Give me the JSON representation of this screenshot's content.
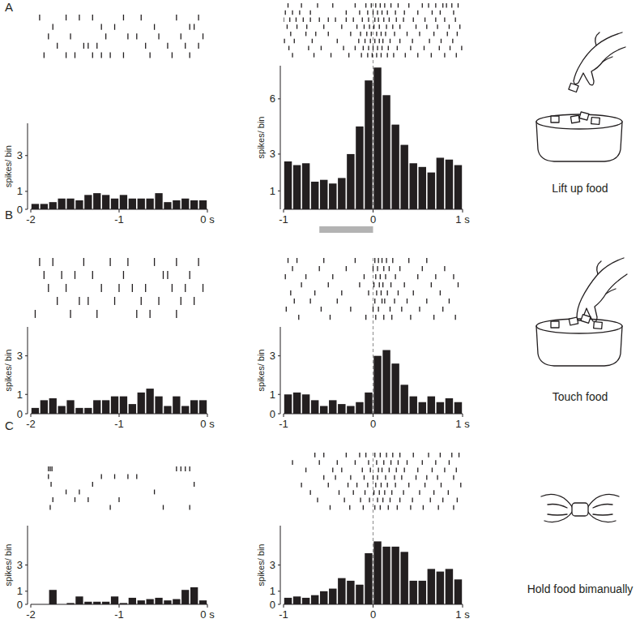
{
  "chart_data": [
    {
      "type": "histogram",
      "y_label": "spikes/ bin",
      "color": "#231f20",
      "bins": [
        -2.0,
        -1.9,
        -1.8,
        -1.7,
        -1.6,
        -1.5,
        -1.4,
        -1.3,
        -1.2,
        -1.1,
        -1.0,
        -0.9,
        -0.8,
        -0.7,
        -0.6,
        -0.5,
        -0.4,
        -0.3,
        -0.2,
        -0.1,
        0.0
      ],
      "values": [
        0.3,
        0.3,
        0.4,
        0.6,
        0.6,
        0.5,
        0.8,
        0.9,
        0.8,
        0.6,
        0.8,
        0.6,
        0.6,
        0.6,
        0.9,
        0.4,
        0.5,
        0.6,
        0.5,
        0.5
      ],
      "xlim": [
        -2,
        0
      ],
      "xticks": [
        -2,
        -1,
        {
          "value": 0,
          "label": "0 s"
        }
      ],
      "ylim": [
        0,
        4.8
      ],
      "yticks": [
        0,
        1,
        3
      ],
      "raster": [
        [
          -1.9,
          -1.6,
          -1.45,
          -1.3,
          -0.95,
          -0.75,
          -0.35,
          -0.1
        ],
        [
          -1.75,
          -1.2,
          -1.05,
          -0.6,
          -0.2,
          -0.15
        ],
        [
          -1.8,
          -1.55,
          -1.15,
          -0.9,
          -0.8,
          -0.55,
          -0.3,
          -0.05
        ],
        [
          -1.7,
          -1.4,
          -1.35,
          -1.25,
          -0.7,
          -0.45,
          -0.25,
          -0.1
        ],
        [
          -1.85,
          -1.6,
          -1.5,
          -1.3,
          -1.2,
          -1.1,
          -0.95,
          -0.65,
          -0.4,
          -0.2
        ]
      ]
    },
    {
      "type": "histogram",
      "y_label": "spikes/ bin",
      "color": "#231f20",
      "bins": [
        -1.0,
        -0.9,
        -0.8,
        -0.7,
        -0.6,
        -0.5,
        -0.4,
        -0.3,
        -0.2,
        -0.1,
        0.0,
        0.1,
        0.2,
        0.3,
        0.4,
        0.5,
        0.6,
        0.7,
        0.8,
        0.9,
        1.0
      ],
      "values": [
        2.6,
        2.4,
        2.5,
        1.5,
        1.6,
        1.4,
        1.7,
        3.0,
        4.5,
        7.0,
        7.7,
        6.2,
        4.6,
        3.5,
        2.5,
        2.3,
        2.0,
        2.8,
        2.7,
        2.4
      ],
      "xlim": [
        -1,
        1
      ],
      "xticks": [
        -1,
        0,
        {
          "value": 1,
          "label": "1 s"
        }
      ],
      "ylim": [
        0,
        7.8
      ],
      "yticks": [
        1,
        3,
        6
      ],
      "event_time": 0,
      "epoch": [
        -0.6,
        0
      ],
      "raster": [
        [
          -0.95,
          -0.8,
          -0.62,
          -0.45,
          -0.2,
          -0.08,
          -0.02,
          0.03,
          0.08,
          0.13,
          0.2,
          0.28,
          0.4,
          0.55,
          0.62,
          0.7,
          0.78,
          0.82,
          0.88,
          0.95
        ],
        [
          -0.98,
          -0.9,
          -0.82,
          -0.7,
          -0.3,
          -0.15,
          -0.06,
          0.0,
          0.05,
          0.1,
          0.16,
          0.25,
          0.35,
          0.5,
          0.66,
          0.75,
          0.9
        ],
        [
          -1.0,
          -0.93,
          -0.86,
          -0.78,
          -0.7,
          -0.6,
          -0.5,
          -0.42,
          -0.3,
          -0.22,
          -0.12,
          -0.05,
          0.02,
          0.06,
          0.12,
          0.18,
          0.26,
          0.34,
          0.45,
          0.58,
          0.7,
          0.8,
          0.92
        ],
        [
          -0.96,
          -0.85,
          -0.74,
          -0.55,
          -0.35,
          -0.18,
          -0.1,
          -0.04,
          0.01,
          0.07,
          0.15,
          0.22,
          0.3,
          0.48,
          0.6,
          0.72,
          0.85,
          0.97
        ],
        [
          -0.92,
          -0.75,
          -0.64,
          -0.5,
          -0.25,
          -0.14,
          -0.07,
          -0.02,
          0.04,
          0.09,
          0.14,
          0.24,
          0.38,
          0.52,
          0.68,
          0.83,
          0.94
        ],
        [
          -0.99,
          -0.88,
          -0.68,
          -0.4,
          -0.16,
          -0.09,
          -0.03,
          0.02,
          0.07,
          0.11,
          0.19,
          0.3,
          0.44,
          0.63,
          0.76,
          0.89
        ],
        [
          -0.94,
          -0.72,
          -0.58,
          -0.33,
          -0.2,
          -0.11,
          -0.05,
          0.0,
          0.05,
          0.1,
          0.17,
          0.27,
          0.42,
          0.57,
          0.74,
          0.86,
          0.99
        ],
        [
          -0.9,
          -0.66,
          -0.47,
          -0.27,
          -0.13,
          -0.06,
          -0.01,
          0.04,
          0.09,
          0.16,
          0.23,
          0.36,
          0.5,
          0.65,
          0.8,
          0.93
        ]
      ]
    },
    {
      "type": "histogram",
      "y_label": "spikes/ bin",
      "color": "#231f20",
      "bins": [
        -2.0,
        -1.9,
        -1.8,
        -1.7,
        -1.6,
        -1.5,
        -1.4,
        -1.3,
        -1.2,
        -1.1,
        -1.0,
        -0.9,
        -0.8,
        -0.7,
        -0.6,
        -0.5,
        -0.4,
        -0.3,
        -0.2,
        -0.1,
        0.0
      ],
      "values": [
        0.3,
        0.7,
        0.8,
        0.4,
        0.7,
        0.3,
        0.3,
        0.7,
        0.7,
        0.9,
        0.9,
        0.5,
        1.1,
        1.3,
        0.9,
        0.4,
        0.9,
        0.4,
        0.7,
        0.7
      ],
      "xlim": [
        -2,
        0
      ],
      "xticks": [
        -2,
        -1,
        {
          "value": 0,
          "label": "0 s"
        }
      ],
      "ylim": [
        0,
        4.5
      ],
      "yticks": [
        0,
        1,
        3
      ],
      "raster": [
        [
          -1.9,
          -1.75,
          -1.4,
          -1.1,
          -0.9,
          -0.6,
          -0.35,
          -0.1
        ],
        [
          -1.85,
          -1.65,
          -1.5,
          -1.3,
          -0.95,
          -0.5,
          -0.45,
          -0.2
        ],
        [
          -1.8,
          -1.6,
          -1.2,
          -1.0,
          -0.85,
          -0.7,
          -0.4,
          -0.25,
          -0.05
        ],
        [
          -1.7,
          -1.45,
          -1.35,
          -1.05,
          -0.75,
          -0.55,
          -0.3,
          -0.15
        ],
        [
          -1.95,
          -1.55,
          -1.25,
          -0.8,
          -0.65,
          -0.35
        ]
      ]
    },
    {
      "type": "histogram",
      "y_label": "spikes/ bin",
      "color": "#231f20",
      "bins": [
        -1.0,
        -0.9,
        -0.8,
        -0.7,
        -0.6,
        -0.5,
        -0.4,
        -0.3,
        -0.2,
        -0.1,
        0.0,
        0.1,
        0.2,
        0.3,
        0.4,
        0.5,
        0.6,
        0.7,
        0.8,
        0.9,
        1.0
      ],
      "values": [
        1.0,
        1.1,
        1.0,
        0.7,
        0.4,
        0.7,
        0.5,
        0.4,
        0.6,
        1.1,
        3.0,
        3.3,
        2.6,
        1.5,
        0.9,
        0.6,
        0.9,
        0.6,
        0.8,
        0.6
      ],
      "xlim": [
        -1,
        1
      ],
      "xticks": [
        -1,
        0,
        {
          "value": 1,
          "label": "1 s"
        }
      ],
      "ylim": [
        0,
        4.5
      ],
      "yticks": [
        0,
        1,
        3
      ],
      "event_time": 0,
      "raster": [
        [
          -0.95,
          -0.85,
          -0.55,
          -0.2,
          0.02,
          0.06,
          0.1,
          0.15,
          0.22,
          0.4,
          0.6
        ],
        [
          -0.9,
          -0.6,
          -0.3,
          0.0,
          0.05,
          0.12,
          0.18,
          0.3,
          0.55,
          0.8
        ],
        [
          -0.98,
          -0.75,
          -0.45,
          -0.1,
          0.03,
          0.08,
          0.14,
          0.25,
          0.5,
          0.7,
          0.9
        ],
        [
          -0.8,
          -0.5,
          -0.15,
          0.01,
          0.07,
          0.11,
          0.2,
          0.35,
          0.65,
          0.95
        ],
        [
          -0.92,
          -0.65,
          -0.35,
          -0.05,
          0.04,
          0.09,
          0.16,
          0.28,
          0.45,
          0.75
        ],
        [
          -0.88,
          -0.7,
          -0.4,
          0.02,
          0.1,
          0.13,
          0.24,
          0.38,
          0.6,
          0.85
        ],
        [
          -0.97,
          -0.58,
          -0.25,
          0.0,
          0.06,
          0.19,
          0.32,
          0.52,
          0.78
        ],
        [
          -0.83,
          -0.48,
          -0.08,
          0.03,
          0.12,
          0.21,
          0.42,
          0.68,
          0.92
        ]
      ]
    },
    {
      "type": "histogram",
      "y_label": "spikes/ bin",
      "color": "#231f20",
      "bins": [
        -2.0,
        -1.9,
        -1.8,
        -1.7,
        -1.6,
        -1.5,
        -1.4,
        -1.3,
        -1.2,
        -1.1,
        -1.0,
        -0.9,
        -0.8,
        -0.7,
        -0.6,
        -0.5,
        -0.4,
        -0.3,
        -0.2,
        -0.1,
        0.0
      ],
      "values": [
        0,
        0,
        1.1,
        0,
        0.1,
        0.6,
        0.2,
        0.2,
        0.2,
        0.6,
        0.1,
        0.5,
        0.3,
        0.4,
        0.5,
        0.3,
        0.4,
        1.1,
        1.3,
        0.3
      ],
      "xlim": [
        -2,
        0
      ],
      "xticks": [
        -2,
        -1,
        {
          "value": 0,
          "label": "0 s"
        }
      ],
      "ylim": [
        0,
        6
      ],
      "yticks": [
        0,
        1,
        3
      ],
      "raster": [
        [
          -1.8,
          -1.78,
          -1.76,
          -0.35,
          -0.3,
          -0.25,
          -0.2
        ],
        [
          -1.8,
          -1.2,
          -1.05,
          -0.9,
          -0.8
        ],
        [
          -1.77,
          -1.3,
          -0.15
        ],
        [
          -1.6,
          -1.45,
          -0.6
        ],
        [
          -1.75,
          -1.5,
          -1.35,
          -1.0
        ],
        [
          -1.78,
          -1.1,
          -0.5,
          -0.2
        ]
      ]
    },
    {
      "type": "histogram",
      "y_label": "spikes/ bin",
      "color": "#231f20",
      "bins": [
        -1.0,
        -0.9,
        -0.8,
        -0.7,
        -0.6,
        -0.5,
        -0.4,
        -0.3,
        -0.2,
        -0.1,
        0.0,
        0.1,
        0.2,
        0.3,
        0.4,
        0.5,
        0.6,
        0.7,
        0.8,
        0.9,
        1.0
      ],
      "values": [
        0.5,
        0.6,
        0.5,
        0.7,
        1.0,
        1.2,
        2.0,
        1.8,
        1.5,
        3.9,
        4.8,
        4.4,
        4.4,
        4.0,
        1.8,
        1.8,
        2.7,
        2.5,
        2.7,
        1.9
      ],
      "xlim": [
        -1,
        1
      ],
      "xticks": [
        -1,
        0,
        {
          "value": 1,
          "label": "1 s"
        }
      ],
      "ylim": [
        0,
        6
      ],
      "yticks": [
        0,
        1,
        3
      ],
      "event_time": 0,
      "raster": [
        [
          -0.65,
          -0.55,
          -0.3,
          -0.15,
          -0.08,
          0.02,
          0.08,
          0.15,
          0.22,
          0.3,
          0.45,
          0.62,
          0.75,
          0.88,
          0.96
        ],
        [
          -0.9,
          -0.6,
          -0.4,
          -0.2,
          -0.05,
          0.04,
          0.12,
          0.2,
          0.28,
          0.38,
          0.55,
          0.7,
          0.85
        ],
        [
          -0.75,
          -0.45,
          -0.35,
          -0.12,
          -0.03,
          0.06,
          0.1,
          0.18,
          0.26,
          0.35,
          0.5,
          0.66,
          0.8,
          0.93
        ],
        [
          -0.55,
          -0.42,
          -0.25,
          -0.1,
          0.0,
          0.05,
          0.14,
          0.24,
          0.32,
          0.48,
          0.6,
          0.72,
          0.9
        ],
        [
          -0.8,
          -0.5,
          -0.28,
          -0.18,
          -0.06,
          0.03,
          0.09,
          0.16,
          0.25,
          0.4,
          0.58,
          0.76,
          0.98
        ],
        [
          -0.7,
          -0.38,
          -0.22,
          -0.09,
          0.01,
          0.07,
          0.13,
          0.21,
          0.34,
          0.52,
          0.68,
          0.84
        ],
        [
          -0.62,
          -0.32,
          -0.14,
          -0.04,
          0.05,
          0.11,
          0.19,
          0.3,
          0.44,
          0.64,
          0.78,
          0.94
        ],
        [
          -0.48,
          -0.26,
          -0.11,
          0.02,
          0.08,
          0.17,
          0.27,
          0.42,
          0.56,
          0.73,
          0.9
        ]
      ]
    }
  ],
  "panels": [
    {
      "letter": "A",
      "caption": "Lift up food"
    },
    {
      "letter": "B",
      "caption": "Touch food"
    },
    {
      "letter": "C",
      "caption": "Hold food bimanually"
    }
  ]
}
